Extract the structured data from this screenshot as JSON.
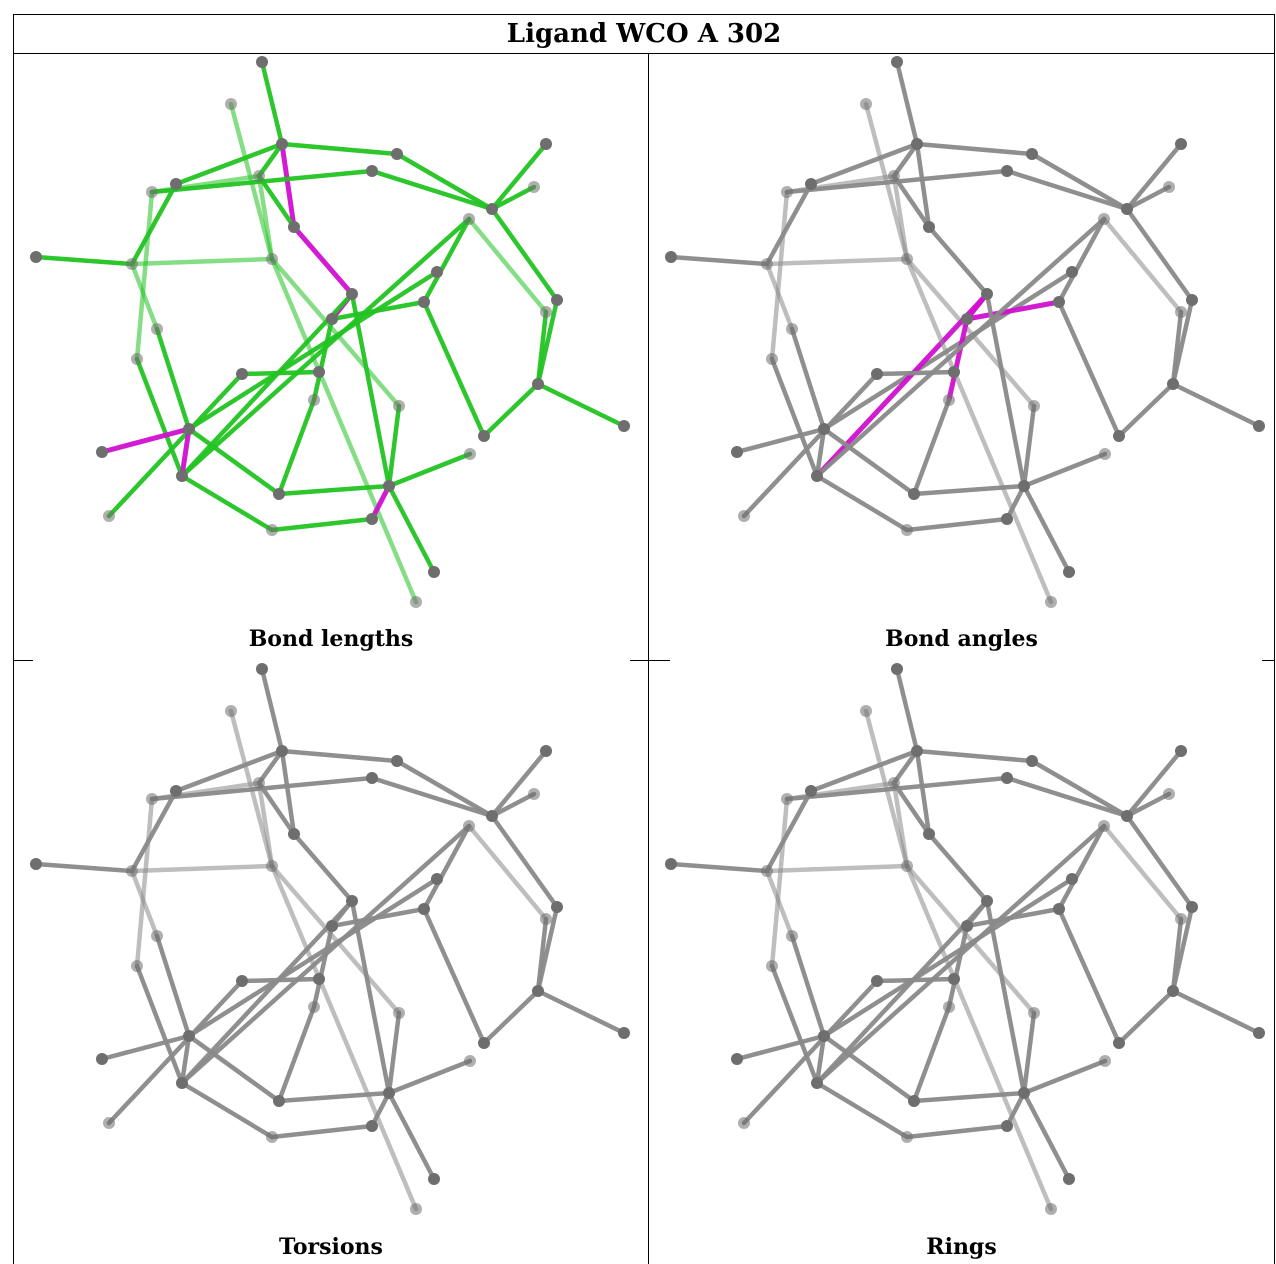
{
  "title": "Ligand WCO A 302",
  "panels": [
    {
      "caption": "Bond lengths",
      "mode": "green",
      "highlight": [
        "b5",
        "b6",
        "b31",
        "b48",
        "b49",
        "b50"
      ]
    },
    {
      "caption": "Bond angles",
      "mode": "grey",
      "highlight": [
        "b31",
        "b32",
        "b33",
        "b35"
      ]
    },
    {
      "caption": "Torsions",
      "mode": "grey",
      "highlight": []
    },
    {
      "caption": "Rings",
      "mode": "grey",
      "highlight": []
    }
  ],
  "colors": {
    "green": "#22c422",
    "grey": "#8a8a8a",
    "highlight": "#d010d0",
    "atom": "#6e6e6e",
    "border": "#000000"
  }
}
